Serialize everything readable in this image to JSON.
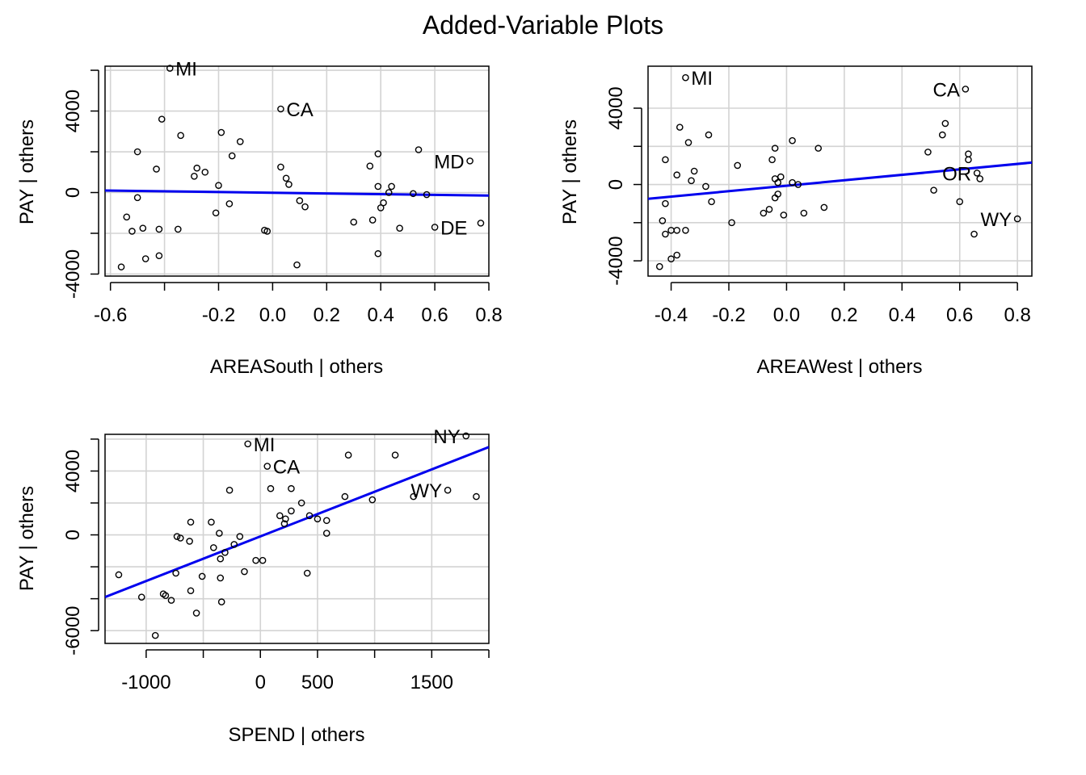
{
  "page_title": "Added-Variable Plots",
  "colors": {
    "fit_line": "#0000ee",
    "grid": "#d3d3d3",
    "points": "#000000"
  },
  "chart_data": [
    {
      "type": "scatter",
      "xlabel": "AREASouth | others",
      "ylabel": "PAY  | others",
      "xlim": [
        -0.62,
        0.8
      ],
      "ylim": [
        -4100,
        6200
      ],
      "xticks": [
        -0.6,
        -0.4,
        -0.2,
        0.0,
        0.2,
        0.4,
        0.6,
        0.8
      ],
      "xtick_labels": [
        "-0.6",
        "",
        "-0.2",
        "0.0",
        "0.2",
        "0.4",
        "0.6",
        "0.8"
      ],
      "yticks": [
        -4000,
        -2000,
        0,
        2000,
        4000,
        6000
      ],
      "ytick_labels": [
        "-4000",
        "",
        "0",
        "",
        "4000",
        ""
      ],
      "fit_line": {
        "x": [
          -0.62,
          0.8
        ],
        "y": [
          100,
          -150
        ]
      },
      "points": [
        [
          -0.38,
          6100
        ],
        [
          0.03,
          4100
        ],
        [
          -0.41,
          3600
        ],
        [
          -0.34,
          2800
        ],
        [
          -0.19,
          2950
        ],
        [
          -0.12,
          2500
        ],
        [
          -0.5,
          2000
        ],
        [
          -0.15,
          1800
        ],
        [
          0.39,
          1900
        ],
        [
          0.54,
          2100
        ],
        [
          0.73,
          1550
        ],
        [
          -0.43,
          1150
        ],
        [
          -0.28,
          1200
        ],
        [
          -0.25,
          1000
        ],
        [
          -0.29,
          800
        ],
        [
          0.03,
          1250
        ],
        [
          0.05,
          700
        ],
        [
          0.06,
          400
        ],
        [
          0.36,
          1300
        ],
        [
          -0.2,
          350
        ],
        [
          0.39,
          300
        ],
        [
          0.44,
          300
        ],
        [
          0.43,
          0
        ],
        [
          0.52,
          -50
        ],
        [
          0.57,
          -100
        ],
        [
          -0.5,
          -250
        ],
        [
          0.1,
          -400
        ],
        [
          0.41,
          -500
        ],
        [
          0.12,
          -700
        ],
        [
          0.4,
          -750
        ],
        [
          -0.16,
          -550
        ],
        [
          -0.21,
          -1000
        ],
        [
          -0.54,
          -1200
        ],
        [
          0.3,
          -1450
        ],
        [
          0.37,
          -1350
        ],
        [
          0.77,
          -1500
        ],
        [
          -0.48,
          -1750
        ],
        [
          -0.52,
          -1900
        ],
        [
          -0.42,
          -1800
        ],
        [
          -0.35,
          -1800
        ],
        [
          0.6,
          -1700
        ],
        [
          0.47,
          -1750
        ],
        [
          -0.03,
          -1850
        ],
        [
          -0.02,
          -1900
        ],
        [
          -0.42,
          -3100
        ],
        [
          -0.47,
          -3250
        ],
        [
          0.39,
          -3000
        ],
        [
          0.09,
          -3550
        ],
        [
          -0.56,
          -3650
        ]
      ],
      "labels": [
        {
          "text": "MI",
          "x": -0.38,
          "y": 6100,
          "side": "right"
        },
        {
          "text": "CA",
          "x": 0.03,
          "y": 4100,
          "side": "right"
        },
        {
          "text": "MD",
          "x": 0.73,
          "y": 1550,
          "side": "left"
        },
        {
          "text": "DE",
          "x": 0.6,
          "y": -1700,
          "side": "right"
        }
      ]
    },
    {
      "type": "scatter",
      "xlabel": "AREAWest | others",
      "ylabel": "PAY  | others",
      "xlim": [
        -0.48,
        0.85
      ],
      "ylim": [
        -4800,
        6200
      ],
      "xticks": [
        -0.4,
        -0.2,
        0.0,
        0.2,
        0.4,
        0.6,
        0.8
      ],
      "xtick_labels": [
        "-0.4",
        "-0.2",
        "0.0",
        "0.2",
        "0.4",
        "0.6",
        "0.8"
      ],
      "yticks": [
        -4000,
        -2000,
        0,
        2000,
        4000
      ],
      "ytick_labels": [
        "-4000",
        "",
        "0",
        "",
        "4000"
      ],
      "fit_line": {
        "x": [
          -0.48,
          0.85
        ],
        "y": [
          -750,
          1150
        ]
      },
      "points": [
        [
          -0.35,
          5600
        ],
        [
          0.62,
          5000
        ],
        [
          -0.37,
          3000
        ],
        [
          0.55,
          3200
        ],
        [
          -0.34,
          2200
        ],
        [
          -0.27,
          2600
        ],
        [
          0.54,
          2600
        ],
        [
          0.02,
          2300
        ],
        [
          -0.04,
          1900
        ],
        [
          0.11,
          1900
        ],
        [
          0.49,
          1700
        ],
        [
          0.63,
          1600
        ],
        [
          -0.42,
          1300
        ],
        [
          -0.05,
          1300
        ],
        [
          0.63,
          1300
        ],
        [
          -0.17,
          1000
        ],
        [
          -0.32,
          700
        ],
        [
          -0.38,
          500
        ],
        [
          0.66,
          600
        ],
        [
          -0.04,
          300
        ],
        [
          -0.02,
          400
        ],
        [
          0.67,
          300
        ],
        [
          -0.33,
          200
        ],
        [
          -0.03,
          100
        ],
        [
          0.02,
          100
        ],
        [
          0.04,
          0
        ],
        [
          -0.28,
          -100
        ],
        [
          0.51,
          -300
        ],
        [
          -0.03,
          -500
        ],
        [
          -0.04,
          -700
        ],
        [
          -0.26,
          -900
        ],
        [
          0.6,
          -900
        ],
        [
          -0.42,
          -1000
        ],
        [
          0.13,
          -1200
        ],
        [
          -0.06,
          -1300
        ],
        [
          -0.08,
          -1500
        ],
        [
          0.06,
          -1500
        ],
        [
          -0.01,
          -1600
        ],
        [
          -0.43,
          -1900
        ],
        [
          -0.19,
          -2000
        ],
        [
          0.8,
          -1800
        ],
        [
          -0.4,
          -2400
        ],
        [
          -0.38,
          -2400
        ],
        [
          -0.35,
          -2400
        ],
        [
          -0.42,
          -2600
        ],
        [
          0.65,
          -2600
        ],
        [
          -0.38,
          -3700
        ],
        [
          -0.4,
          -3900
        ],
        [
          -0.44,
          -4300
        ]
      ],
      "labels": [
        {
          "text": "MI",
          "x": -0.35,
          "y": 5600,
          "side": "right"
        },
        {
          "text": "CA",
          "x": 0.62,
          "y": 5000,
          "side": "left"
        },
        {
          "text": "OR",
          "x": 0.66,
          "y": 600,
          "side": "left"
        },
        {
          "text": "WY",
          "x": 0.8,
          "y": -1800,
          "side": "left"
        }
      ]
    },
    {
      "type": "scatter",
      "xlabel": "SPEND | others",
      "ylabel": "PAY  | others",
      "xlim": [
        -1360,
        2000
      ],
      "ylim": [
        -6800,
        6300
      ],
      "xticks": [
        -1000,
        -500,
        0,
        500,
        1000,
        1500,
        2000
      ],
      "xtick_labels": [
        "-1000",
        "",
        "0",
        "500",
        "",
        "1500",
        ""
      ],
      "yticks": [
        -6000,
        -4000,
        -2000,
        0,
        2000,
        4000,
        6000
      ],
      "ytick_labels": [
        "-6000",
        "",
        "",
        "0",
        "",
        "4000",
        ""
      ],
      "fit_line": {
        "x": [
          -1360,
          2000
        ],
        "y": [
          -3900,
          5500
        ]
      },
      "points": [
        [
          1800,
          6200
        ],
        [
          -110,
          5700
        ],
        [
          60,
          4300
        ],
        [
          770,
          5000
        ],
        [
          1180,
          5000
        ],
        [
          -270,
          2800
        ],
        [
          90,
          2900
        ],
        [
          270,
          2900
        ],
        [
          1640,
          2800
        ],
        [
          1890,
          2400
        ],
        [
          740,
          2400
        ],
        [
          1340,
          2400
        ],
        [
          980,
          2200
        ],
        [
          360,
          2000
        ],
        [
          270,
          1500
        ],
        [
          170,
          1200
        ],
        [
          220,
          1000
        ],
        [
          430,
          1200
        ],
        [
          500,
          1000
        ],
        [
          580,
          900
        ],
        [
          -610,
          800
        ],
        [
          -430,
          800
        ],
        [
          210,
          700
        ],
        [
          -360,
          100
        ],
        [
          -180,
          -100
        ],
        [
          580,
          100
        ],
        [
          -730,
          -100
        ],
        [
          -700,
          -200
        ],
        [
          -620,
          -400
        ],
        [
          -230,
          -600
        ],
        [
          -410,
          -800
        ],
        [
          -310,
          -1100
        ],
        [
          -350,
          -1500
        ],
        [
          -40,
          -1600
        ],
        [
          20,
          -1600
        ],
        [
          -140,
          -2300
        ],
        [
          -1240,
          -2500
        ],
        [
          -740,
          -2400
        ],
        [
          -510,
          -2600
        ],
        [
          -350,
          -2700
        ],
        [
          410,
          -2400
        ],
        [
          -610,
          -3500
        ],
        [
          -1040,
          -3900
        ],
        [
          -830,
          -3800
        ],
        [
          -850,
          -3700
        ],
        [
          -780,
          -4100
        ],
        [
          -340,
          -4200
        ],
        [
          -560,
          -4900
        ],
        [
          -920,
          -6300
        ]
      ],
      "labels": [
        {
          "text": "NY",
          "x": 1800,
          "y": 6200,
          "side": "left"
        },
        {
          "text": "MI",
          "x": -110,
          "y": 5700,
          "side": "right"
        },
        {
          "text": "CA",
          "x": 60,
          "y": 4300,
          "side": "right"
        },
        {
          "text": "WY",
          "x": 1640,
          "y": 2800,
          "side": "left"
        }
      ]
    }
  ]
}
